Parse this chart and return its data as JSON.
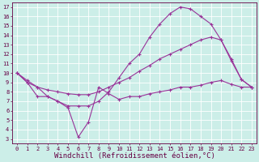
{
  "xlabel": "Windchill (Refroidissement éolien,°C)",
  "background_color": "#cceee8",
  "line_color": "#993399",
  "xlim": [
    -0.5,
    23.5
  ],
  "ylim": [
    2.5,
    17.5
  ],
  "xticks": [
    0,
    1,
    2,
    3,
    4,
    5,
    6,
    7,
    8,
    9,
    10,
    11,
    12,
    13,
    14,
    15,
    16,
    17,
    18,
    19,
    20,
    21,
    22,
    23
  ],
  "yticks": [
    3,
    4,
    5,
    6,
    7,
    8,
    9,
    10,
    11,
    12,
    13,
    14,
    15,
    16,
    17
  ],
  "line1_x": [
    0,
    1,
    2,
    3,
    4,
    5,
    6,
    7,
    8,
    9,
    10,
    11,
    12,
    13,
    14,
    15,
    16,
    17,
    18,
    19,
    20,
    21,
    22,
    23
  ],
  "line1_y": [
    10.0,
    9.0,
    7.5,
    7.5,
    7.0,
    6.3,
    3.2,
    4.8,
    8.5,
    7.8,
    7.2,
    7.5,
    7.5,
    7.8,
    8.0,
    8.2,
    8.5,
    8.5,
    8.7,
    9.0,
    9.2,
    8.8,
    8.5,
    8.5
  ],
  "line2_x": [
    0,
    1,
    2,
    3,
    4,
    5,
    6,
    7,
    8,
    9,
    10,
    11,
    12,
    13,
    14,
    15,
    16,
    17,
    18,
    19,
    20,
    21,
    22,
    23
  ],
  "line2_y": [
    10.0,
    9.0,
    8.5,
    7.5,
    7.0,
    6.5,
    6.5,
    6.5,
    7.0,
    8.0,
    9.5,
    11.0,
    12.0,
    13.8,
    15.2,
    16.3,
    17.0,
    16.8,
    16.0,
    15.2,
    13.5,
    11.3,
    9.3,
    8.5
  ],
  "line3_x": [
    0,
    1,
    2,
    3,
    4,
    5,
    6,
    7,
    8,
    9,
    10,
    11,
    12,
    13,
    14,
    15,
    16,
    17,
    18,
    19,
    20,
    21,
    22,
    23
  ],
  "line3_y": [
    10.0,
    9.2,
    8.5,
    8.2,
    8.0,
    7.8,
    7.7,
    7.7,
    8.0,
    8.5,
    9.0,
    9.5,
    10.2,
    10.8,
    11.5,
    12.0,
    12.5,
    13.0,
    13.5,
    13.8,
    13.5,
    11.5,
    9.3,
    8.5
  ],
  "grid_color": "#ffffff",
  "tick_fontsize": 5,
  "xlabel_fontsize": 6.5
}
